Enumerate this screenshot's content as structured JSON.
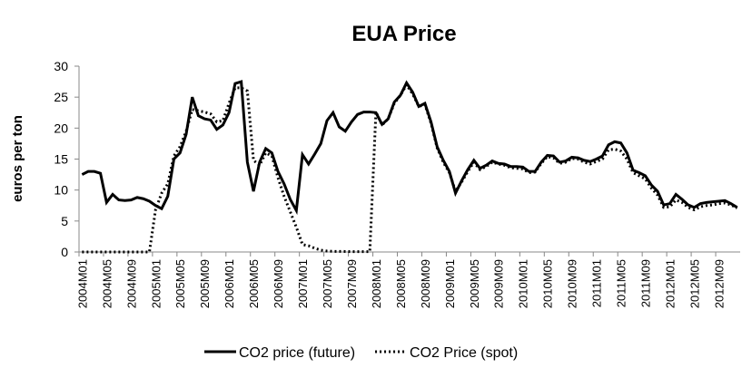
{
  "chart_data": {
    "type": "line",
    "title": "EUA Price",
    "y_label": "euros per ton",
    "categories": [
      "2004M01",
      null,
      null,
      null,
      "2004M05",
      null,
      null,
      null,
      "2004M09",
      null,
      null,
      null,
      "2005M01",
      null,
      null,
      null,
      "2005M05",
      null,
      null,
      null,
      "2005M09",
      null,
      null,
      null,
      "2006M01",
      null,
      null,
      null,
      "2006M05",
      null,
      null,
      null,
      "2006M09",
      null,
      null,
      null,
      "2007M01",
      null,
      null,
      null,
      "2007M05",
      null,
      null,
      null,
      "2007M09",
      null,
      null,
      null,
      "2008M01",
      null,
      null,
      null,
      "2008M05",
      null,
      null,
      null,
      "2008M09",
      null,
      null,
      null,
      "2009M01",
      null,
      null,
      null,
      "2009M05",
      null,
      null,
      null,
      "2009M09",
      null,
      null,
      null,
      "2010M01",
      null,
      null,
      null,
      "2010M05",
      null,
      null,
      null,
      "2010M09",
      null,
      null,
      null,
      "2011M01",
      null,
      null,
      null,
      "2011M05",
      null,
      null,
      null,
      "2011M09",
      null,
      null,
      null,
      "2012M01",
      null,
      null,
      null,
      "2012M05",
      null,
      null,
      null,
      "2012M09",
      null,
      null,
      null
    ],
    "series": [
      {
        "name": "CO2 price (future)",
        "color": "#000000",
        "dash": "solid",
        "values": [
          12.5,
          13,
          13,
          12.7,
          8,
          9.3,
          8.4,
          8.3,
          8.4,
          8.8,
          8.6,
          8.2,
          7.5,
          7,
          9,
          15,
          16,
          19,
          25,
          22,
          21.5,
          21.3,
          19.8,
          20.5,
          22.5,
          27.2,
          27.5,
          14.5,
          9.8,
          14.5,
          16.7,
          16,
          13,
          11,
          8.5,
          6.7,
          15.7,
          14.2,
          15.8,
          17.5,
          21.2,
          22.5,
          20.2,
          19.5,
          21,
          22.2,
          22.6,
          22.6,
          22.5,
          20.6,
          21.5,
          24.2,
          25.3,
          27.3,
          25.8,
          23.5,
          24,
          21,
          17,
          14.8,
          13,
          9.5,
          11.5,
          13.3,
          14.8,
          13.5,
          14,
          14.7,
          14.3,
          14.2,
          13.8,
          13.8,
          13.7,
          13,
          13,
          14.5,
          15.6,
          15.5,
          14.5,
          14.7,
          15.3,
          15.2,
          14.8,
          14.6,
          15,
          15.5,
          17.3,
          17.8,
          17.6,
          16,
          13.2,
          12.8,
          12.3,
          10.8,
          9.8,
          7.6,
          7.8,
          9.3,
          8.5,
          7.6,
          7.2,
          7.8,
          8,
          8.1,
          8.2,
          8.3,
          7.8,
          7.2
        ]
      },
      {
        "name": "CO2 Price (spot)",
        "color": "#000000",
        "dash": "dotted",
        "values": [
          0,
          0,
          0,
          0,
          0,
          0,
          0,
          0,
          0,
          0,
          0,
          0,
          6.8,
          9.5,
          11,
          15.5,
          17,
          19.5,
          23,
          22.8,
          22.6,
          22.3,
          21,
          21.2,
          24,
          26.5,
          26.5,
          26,
          14.8,
          14,
          16,
          15.5,
          12,
          9,
          6.5,
          4,
          1.2,
          1,
          0.6,
          0.3,
          0.15,
          0.1,
          0.1,
          0.08,
          0.05,
          0.05,
          0.05,
          0.05,
          22.6,
          20.5,
          21.5,
          24,
          25.3,
          27,
          25.5,
          23.5,
          23.8,
          20.8,
          16.8,
          14.5,
          12.8,
          9.8,
          11.3,
          13,
          14.5,
          13.3,
          13.8,
          14.5,
          14.2,
          14,
          13.6,
          13.5,
          13.4,
          12.8,
          12.9,
          14.3,
          15.4,
          15.2,
          14.3,
          14.5,
          15.1,
          15,
          14.5,
          14.2,
          14.6,
          15,
          16.5,
          16.6,
          16.3,
          15,
          12.8,
          12.3,
          11.8,
          10.3,
          9.2,
          7.2,
          7.3,
          8.4,
          8,
          7.2,
          6.8,
          7.3,
          7.5,
          7.6,
          7.8,
          7.9,
          7.6,
          7.1
        ]
      }
    ],
    "ylim": [
      0,
      30
    ],
    "yticks": [
      0,
      5,
      10,
      15,
      20,
      25,
      30
    ],
    "grid": false,
    "legend": "bottom"
  }
}
